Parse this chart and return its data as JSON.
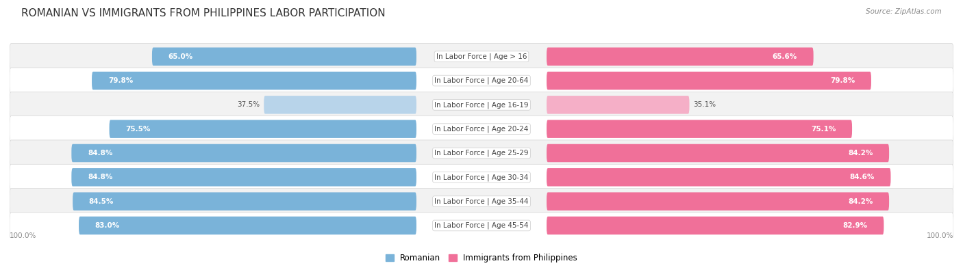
{
  "title": "ROMANIAN VS IMMIGRANTS FROM PHILIPPINES LABOR PARTICIPATION",
  "source": "Source: ZipAtlas.com",
  "categories": [
    "In Labor Force | Age > 16",
    "In Labor Force | Age 20-64",
    "In Labor Force | Age 16-19",
    "In Labor Force | Age 20-24",
    "In Labor Force | Age 25-29",
    "In Labor Force | Age 30-34",
    "In Labor Force | Age 35-44",
    "In Labor Force | Age 45-54"
  ],
  "romanian_values": [
    65.0,
    79.8,
    37.5,
    75.5,
    84.8,
    84.8,
    84.5,
    83.0
  ],
  "philippines_values": [
    65.6,
    79.8,
    35.1,
    75.1,
    84.2,
    84.6,
    84.2,
    82.9
  ],
  "romanian_color": "#7ab3d9",
  "romanian_color_light": "#b8d4ea",
  "philippines_color": "#f07099",
  "philippines_color_light": "#f5afc7",
  "row_bg_odd": "#f2f2f2",
  "row_bg_even": "#ffffff",
  "legend_romanian": "Romanian",
  "legend_philippines": "Immigrants from Philippines",
  "max_value": 100.0,
  "title_fontsize": 11,
  "label_fontsize": 7.5,
  "value_fontsize": 7.5,
  "bottom_label": "100.0%"
}
